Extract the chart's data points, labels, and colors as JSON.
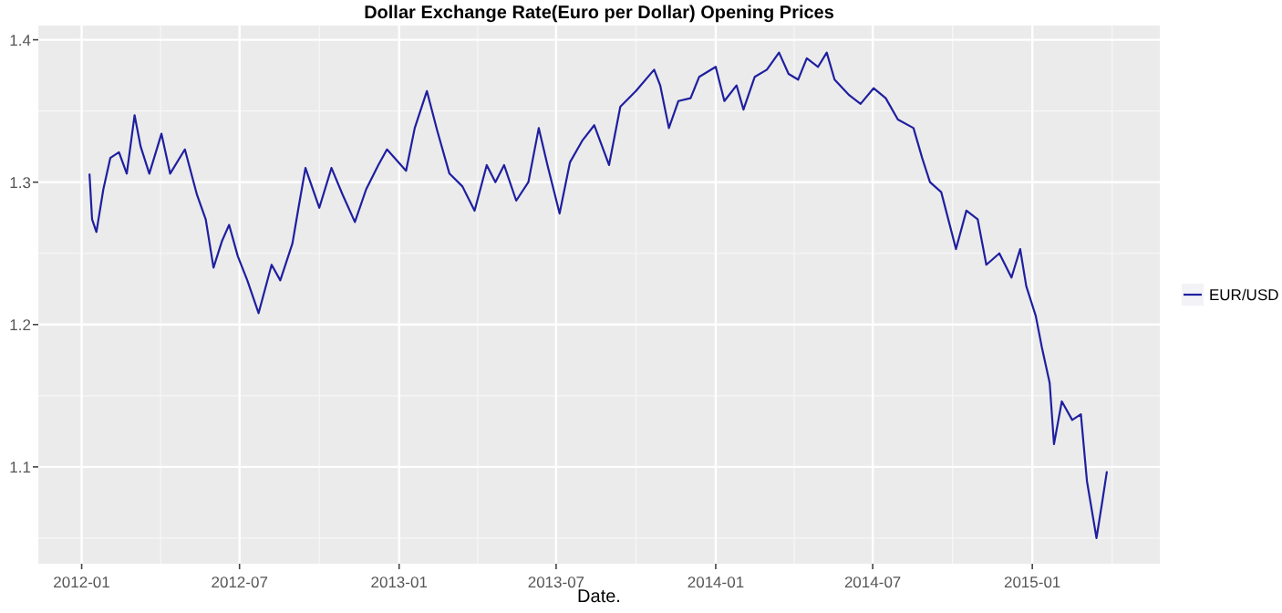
{
  "chart_data": {
    "type": "line",
    "title": "Dollar Exchange Rate(Euro per Dollar) Opening Prices",
    "xlabel": "Date.",
    "xlim": [
      "2011-11-12",
      "2015-05-28"
    ],
    "xticks": [
      "2012-01",
      "2012-07",
      "2013-01",
      "2013-07",
      "2014-01",
      "2014-07",
      "2015-01"
    ],
    "ylim": [
      1.032,
      1.41
    ],
    "yticks": [
      1.1,
      1.2,
      1.3,
      1.4
    ],
    "grid": true,
    "legend": "right",
    "x": [
      "2012-01-10",
      "2012-01-13",
      "2012-01-18",
      "2012-01-26",
      "2012-02-03",
      "2012-02-13",
      "2012-02-22",
      "2012-03-02",
      "2012-03-09",
      "2012-03-19",
      "2012-04-02",
      "2012-04-12",
      "2012-04-29",
      "2012-05-13",
      "2012-05-23",
      "2012-06-01",
      "2012-06-11",
      "2012-06-19",
      "2012-06-29",
      "2012-07-10",
      "2012-07-23",
      "2012-08-07",
      "2012-08-17",
      "2012-08-31",
      "2012-09-07",
      "2012-09-15",
      "2012-10-01",
      "2012-10-15",
      "2012-10-28",
      "2012-11-11",
      "2012-11-24",
      "2012-12-08",
      "2012-12-18",
      "2013-01-09",
      "2013-01-19",
      "2013-02-02",
      "2013-02-14",
      "2013-02-28",
      "2013-03-15",
      "2013-03-29",
      "2013-04-12",
      "2013-04-22",
      "2013-05-02",
      "2013-05-16",
      "2013-05-30",
      "2013-06-11",
      "2013-06-21",
      "2013-07-05",
      "2013-07-17",
      "2013-07-31",
      "2013-08-14",
      "2013-08-31",
      "2013-09-13",
      "2013-10-01",
      "2013-10-22",
      "2013-10-29",
      "2013-11-08",
      "2013-11-19",
      "2013-12-03",
      "2013-12-13",
      "2014-01-01",
      "2014-01-11",
      "2014-01-25",
      "2014-02-02",
      "2014-02-15",
      "2014-03-01",
      "2014-03-15",
      "2014-03-26",
      "2014-04-06",
      "2014-04-16",
      "2014-04-29",
      "2014-05-09",
      "2014-05-18",
      "2014-06-04",
      "2014-06-17",
      "2014-07-02",
      "2014-07-16",
      "2014-07-30",
      "2014-08-17",
      "2014-08-27",
      "2014-09-05",
      "2014-09-18",
      "2014-10-05",
      "2014-10-17",
      "2014-10-30",
      "2014-11-09",
      "2014-11-24",
      "2014-12-08",
      "2014-12-18",
      "2014-12-25",
      "2015-01-05",
      "2015-01-12",
      "2015-01-21",
      "2015-01-26",
      "2015-02-04",
      "2015-02-16",
      "2015-02-26",
      "2015-03-05",
      "2015-03-16",
      "2015-03-23",
      "2015-03-28"
    ],
    "series": [
      {
        "name": "EUR/USD",
        "color": "#1f1fa0",
        "values": [
          1.306,
          1.274,
          1.265,
          1.295,
          1.317,
          1.321,
          1.306,
          1.347,
          1.325,
          1.306,
          1.334,
          1.306,
          1.323,
          1.291,
          1.274,
          1.24,
          1.259,
          1.27,
          1.248,
          1.231,
          1.208,
          1.242,
          1.231,
          1.257,
          1.282,
          1.31,
          1.282,
          1.31,
          1.291,
          1.272,
          1.295,
          1.312,
          1.323,
          1.308,
          1.338,
          1.364,
          1.336,
          1.306,
          1.297,
          1.28,
          1.312,
          1.3,
          1.312,
          1.287,
          1.3,
          1.338,
          1.312,
          1.278,
          1.314,
          1.329,
          1.34,
          1.312,
          1.353,
          1.364,
          1.379,
          1.368,
          1.338,
          1.357,
          1.359,
          1.374,
          1.381,
          1.357,
          1.368,
          1.351,
          1.374,
          1.379,
          1.391,
          1.376,
          1.372,
          1.387,
          1.381,
          1.391,
          1.372,
          1.361,
          1.355,
          1.366,
          1.359,
          1.344,
          1.338,
          1.317,
          1.3,
          1.293,
          1.253,
          1.28,
          1.274,
          1.242,
          1.25,
          1.233,
          1.253,
          1.227,
          1.206,
          1.184,
          1.159,
          1.116,
          1.146,
          1.133,
          1.137,
          1.09,
          1.05,
          1.077,
          1.097
        ]
      }
    ]
  }
}
